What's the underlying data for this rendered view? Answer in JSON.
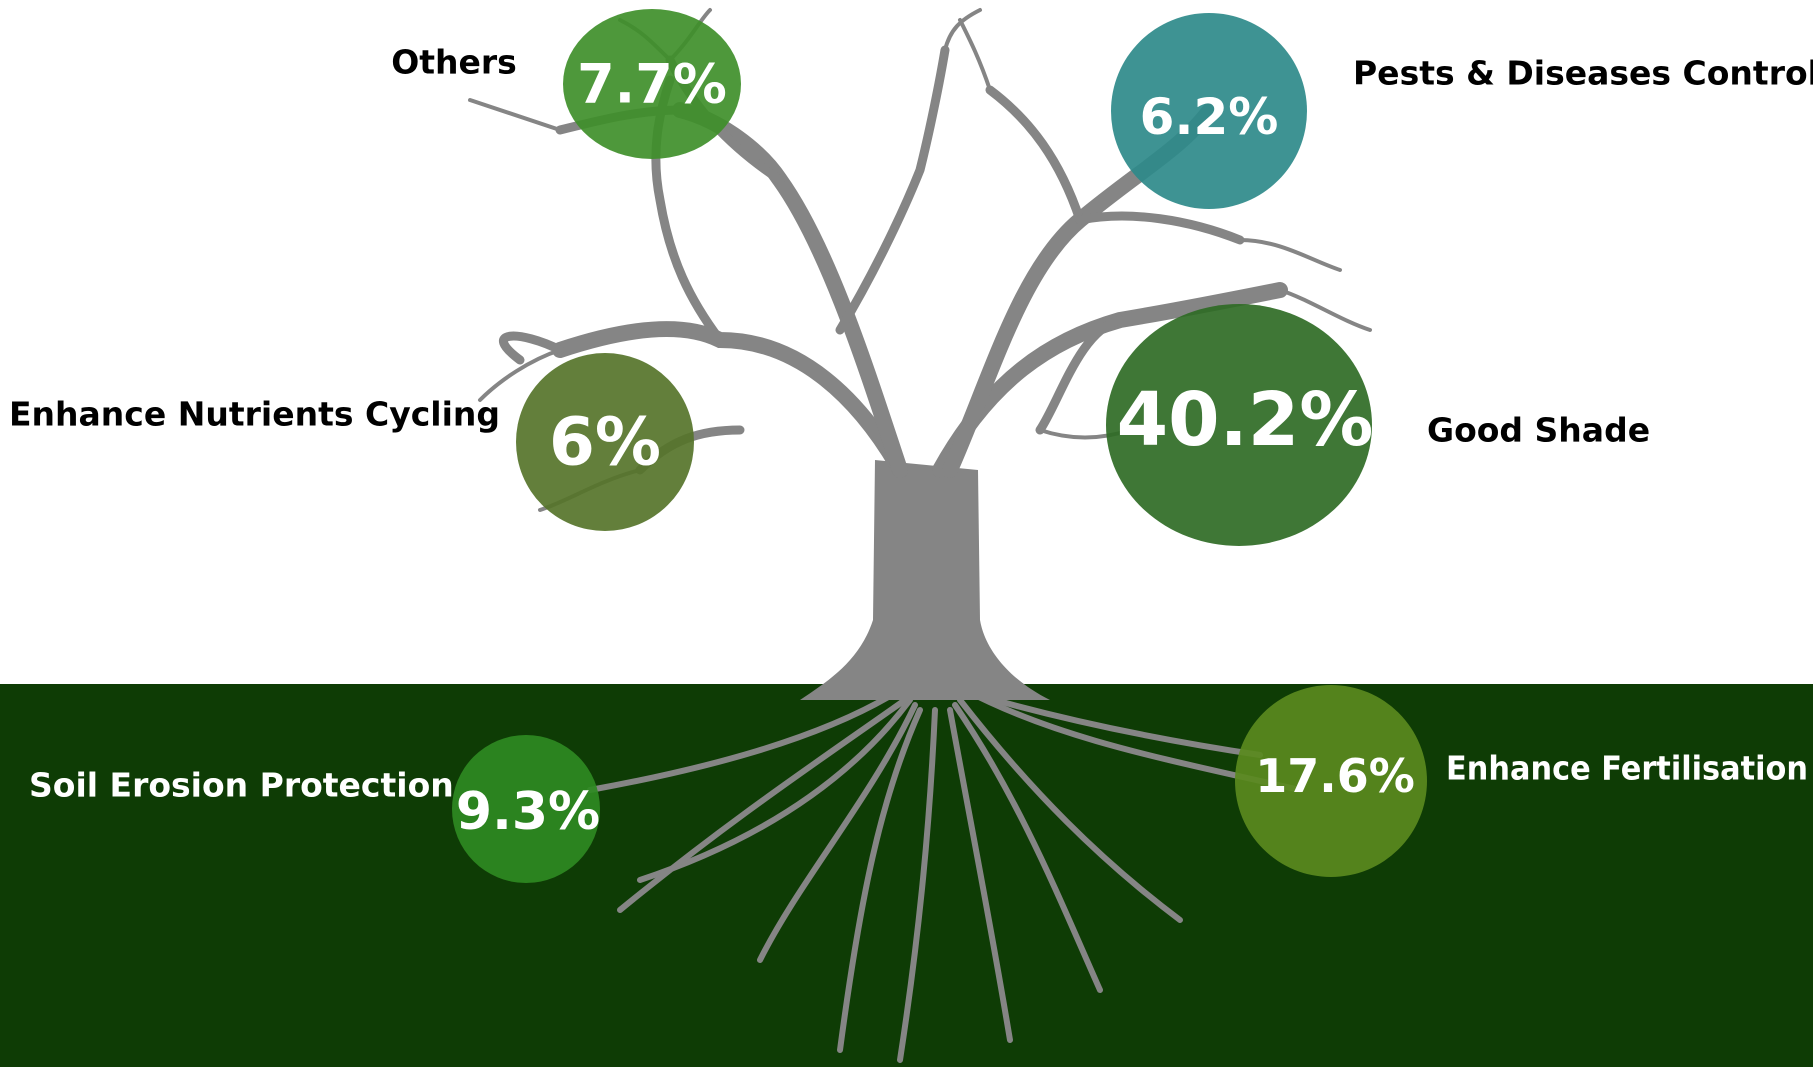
{
  "items": [
    {
      "label": "Others",
      "value": "7.7%"
    },
    {
      "label": "Pests & Diseases Control",
      "value": "6.2%"
    },
    {
      "label": "Enhance Nutrients Cycling",
      "value": "6%"
    },
    {
      "label": "Good Shade",
      "value": "40.2%"
    },
    {
      "label": "Soil Erosion Protection",
      "value": "9.3%"
    },
    {
      "label": "Enhance Fertilisation",
      "value": "17.6%"
    }
  ]
}
